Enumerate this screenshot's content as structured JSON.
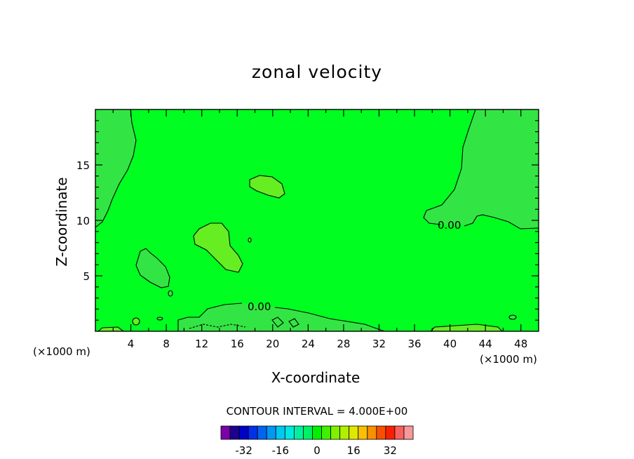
{
  "chart_data": {
    "type": "contour",
    "title": "zonal velocity",
    "xlabel": "X-coordinate",
    "ylabel": "Z-coordinate",
    "x_unit": "(×1000 m)",
    "xlim": [
      0,
      50
    ],
    "ylim": [
      0,
      20
    ],
    "x_ticks": [
      4,
      8,
      12,
      16,
      20,
      24,
      28,
      32,
      36,
      40,
      44,
      48
    ],
    "y_ticks": [
      5,
      10,
      15
    ],
    "contour_interval_text": "CONTOUR INTERVAL = 4.000E+00",
    "contour_labels": [
      "0.00",
      "0.00"
    ],
    "colorbar": {
      "ticks": [
        "-32",
        "-16",
        "0",
        "16",
        "32"
      ],
      "colors": [
        "#7a00a8",
        "#1c0090",
        "#0000c8",
        "#0030e8",
        "#0064f0",
        "#0098f0",
        "#00c8f0",
        "#00e8e0",
        "#00f0a0",
        "#00f064",
        "#00f000",
        "#40f000",
        "#80f000",
        "#b0f000",
        "#e0e800",
        "#f8c000",
        "#f89000",
        "#f85000",
        "#f82000",
        "#f86060",
        "#f89898"
      ]
    },
    "field_colors": {
      "background": "#00ff20",
      "weak_positive": "#66ee22",
      "weak_negative": "#1eee44",
      "near_zero": "#33e544"
    }
  }
}
